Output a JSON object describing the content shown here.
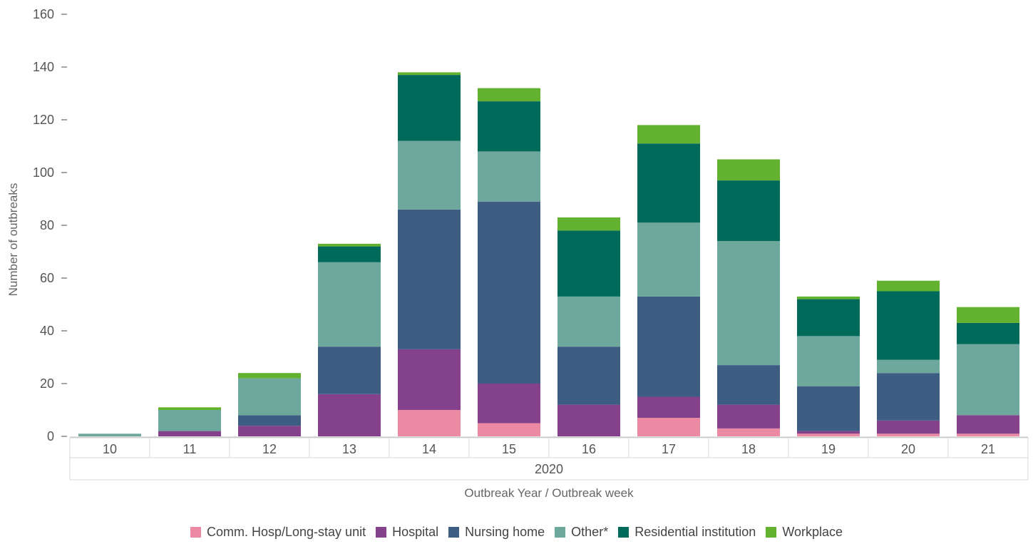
{
  "chart_data": {
    "type": "bar",
    "stacked": true,
    "title": "",
    "xlabel": "Outbreak Year / Outbreak week",
    "ylabel": "Number of outbreaks",
    "ylim": [
      0,
      160
    ],
    "yticks": [
      0,
      20,
      40,
      60,
      80,
      100,
      120,
      140,
      160
    ],
    "year": "2020",
    "categories": [
      "10",
      "11",
      "12",
      "13",
      "14",
      "15",
      "16",
      "17",
      "18",
      "19",
      "20",
      "21"
    ],
    "series": [
      {
        "name": "Comm. Hosp/Long-stay unit",
        "color": "#ec8aa3",
        "values": [
          0,
          0,
          0,
          0,
          10,
          5,
          0,
          7,
          3,
          1,
          1,
          1
        ]
      },
      {
        "name": "Hospital",
        "color": "#84418c",
        "values": [
          0,
          2,
          4,
          16,
          23,
          15,
          12,
          8,
          9,
          1,
          5,
          7
        ]
      },
      {
        "name": "Nursing home",
        "color": "#3e5d83",
        "values": [
          0,
          0,
          4,
          18,
          53,
          69,
          22,
          38,
          15,
          17,
          18,
          0
        ]
      },
      {
        "name": "Other*",
        "color": "#6ea79c",
        "values": [
          1,
          8,
          14,
          32,
          26,
          19,
          19,
          28,
          47,
          19,
          5,
          27
        ]
      },
      {
        "name": "Residential institution",
        "color": "#006a5a",
        "values": [
          0,
          0,
          0,
          6,
          25,
          19,
          25,
          30,
          23,
          14,
          26,
          8
        ]
      },
      {
        "name": "Workplace",
        "color": "#63b22f",
        "values": [
          0,
          1,
          2,
          1,
          1,
          5,
          5,
          7,
          8,
          1,
          4,
          6
        ]
      }
    ],
    "legend_position": "bottom"
  }
}
